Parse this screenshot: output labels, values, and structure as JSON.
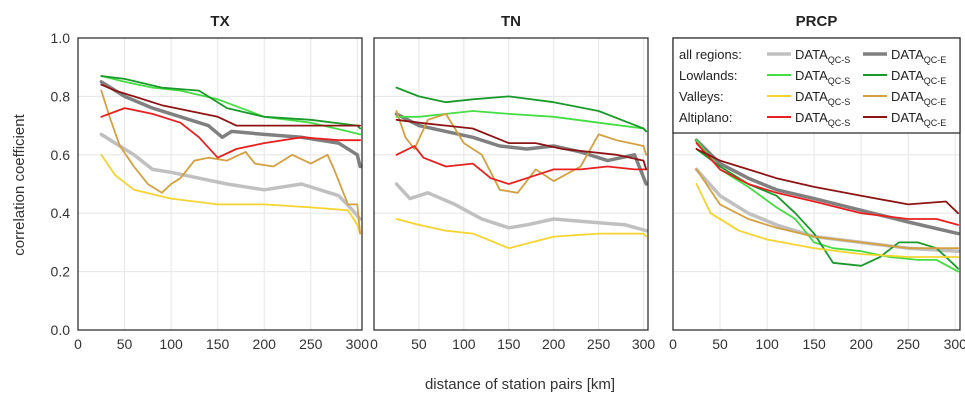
{
  "chart_data": {
    "type": "line",
    "ylabel": "correlation coefficient",
    "xlabel": "distance of station pairs [km]",
    "ylim": [
      0.0,
      1.0
    ],
    "xlim": [
      0,
      305
    ],
    "yticks": [
      "0.0",
      "0.2",
      "0.4",
      "0.6",
      "0.8",
      "1.0"
    ],
    "xticks": [
      "0",
      "50",
      "100",
      "150",
      "200",
      "250",
      "300"
    ],
    "grid": true,
    "legend": {
      "placement": "top-right of third panel",
      "rows": [
        {
          "label": "all regions:",
          "s_name": "DATA",
          "s_sub": "QC-S",
          "e_name": "DATA",
          "e_sub": "QC-E",
          "s_color": "#c0c0c0",
          "e_color": "#808080"
        },
        {
          "label": "Lowlands:",
          "s_name": "DATA",
          "s_sub": "QC-S",
          "e_name": "DATA",
          "e_sub": "QC-E",
          "s_color": "#44dd44",
          "e_color": "#1a9a2a"
        },
        {
          "label": "Valleys:",
          "s_name": "DATA",
          "s_sub": "QC-S",
          "e_name": "DATA",
          "e_sub": "QC-E",
          "s_color": "#f5d431",
          "e_color": "#d4a040"
        },
        {
          "label": "Altiplano:",
          "s_name": "DATA",
          "s_sub": "QC-S",
          "e_name": "DATA",
          "e_sub": "QC-E",
          "s_color": "#e82020",
          "e_color": "#8e1414"
        }
      ]
    },
    "panels": [
      {
        "title": "TX",
        "series": [
          {
            "group": "all regions",
            "variant": "QC-S",
            "color": "#c0c0c0",
            "width": 3.5,
            "x": [
              25,
              40,
              60,
              80,
              100,
              130,
              160,
              200,
              240,
              280,
              295,
              303
            ],
            "y": [
              0.67,
              0.64,
              0.6,
              0.55,
              0.54,
              0.52,
              0.5,
              0.48,
              0.5,
              0.46,
              0.41,
              0.38
            ]
          },
          {
            "group": "all regions",
            "variant": "QC-E",
            "color": "#808080",
            "width": 3.5,
            "x": [
              25,
              50,
              80,
              110,
              140,
              155,
              165,
              200,
              240,
              280,
              300,
              303
            ],
            "y": [
              0.85,
              0.8,
              0.76,
              0.73,
              0.7,
              0.66,
              0.68,
              0.67,
              0.66,
              0.64,
              0.6,
              0.56
            ]
          },
          {
            "group": "Lowlands",
            "variant": "QC-S",
            "color": "#44dd44",
            "width": 1.8,
            "x": [
              25,
              50,
              80,
              110,
              150,
              200,
              250,
              290,
              303
            ],
            "y": [
              0.87,
              0.85,
              0.83,
              0.82,
              0.79,
              0.73,
              0.71,
              0.68,
              0.67
            ]
          },
          {
            "group": "Lowlands",
            "variant": "QC-E",
            "color": "#1a9a2a",
            "width": 1.8,
            "x": [
              25,
              50,
              90,
              130,
              160,
              200,
              250,
              300,
              303
            ],
            "y": [
              0.87,
              0.86,
              0.83,
              0.82,
              0.76,
              0.73,
              0.72,
              0.7,
              0.69
            ]
          },
          {
            "group": "Valleys",
            "variant": "QC-S",
            "color": "#f5d431",
            "width": 1.8,
            "x": [
              25,
              40,
              60,
              100,
              150,
              200,
              250,
              290,
              300,
              303
            ],
            "y": [
              0.6,
              0.53,
              0.48,
              0.45,
              0.43,
              0.43,
              0.42,
              0.41,
              0.36,
              0.33
            ]
          },
          {
            "group": "Valleys",
            "variant": "QC-E",
            "color": "#d4a040",
            "width": 1.8,
            "x": [
              25,
              35,
              45,
              60,
              75,
              90,
              100,
              110,
              125,
              140,
              160,
              180,
              190,
              210,
              230,
              250,
              268,
              275,
              290,
              300,
              303
            ],
            "y": [
              0.82,
              0.72,
              0.63,
              0.56,
              0.5,
              0.47,
              0.5,
              0.52,
              0.58,
              0.59,
              0.58,
              0.61,
              0.57,
              0.56,
              0.6,
              0.57,
              0.6,
              0.55,
              0.43,
              0.43,
              0.33
            ]
          },
          {
            "group": "Altiplano",
            "variant": "QC-S",
            "color": "#e82020",
            "width": 1.8,
            "x": [
              25,
              50,
              80,
              110,
              130,
              150,
              170,
              200,
              240,
              280,
              303
            ],
            "y": [
              0.73,
              0.76,
              0.74,
              0.71,
              0.66,
              0.59,
              0.62,
              0.64,
              0.66,
              0.65,
              0.65
            ]
          },
          {
            "group": "Altiplano",
            "variant": "QC-E",
            "color": "#8e1414",
            "width": 1.8,
            "x": [
              25,
              40,
              60,
              90,
              120,
              150,
              170,
              200,
              240,
              280,
              300,
              303
            ],
            "y": [
              0.84,
              0.82,
              0.8,
              0.77,
              0.75,
              0.73,
              0.7,
              0.7,
              0.7,
              0.7,
              0.7,
              0.7
            ]
          }
        ]
      },
      {
        "title": "TN",
        "series": [
          {
            "group": "all regions",
            "variant": "QC-S",
            "color": "#c0c0c0",
            "width": 3.5,
            "x": [
              25,
              40,
              60,
              90,
              120,
              150,
              170,
              200,
              240,
              280,
              303
            ],
            "y": [
              0.5,
              0.45,
              0.47,
              0.43,
              0.38,
              0.35,
              0.36,
              0.38,
              0.37,
              0.36,
              0.34
            ]
          },
          {
            "group": "all regions",
            "variant": "QC-E",
            "color": "#808080",
            "width": 3.5,
            "x": [
              25,
              50,
              80,
              110,
              140,
              170,
              200,
              230,
              260,
              290,
              303
            ],
            "y": [
              0.74,
              0.7,
              0.68,
              0.66,
              0.63,
              0.62,
              0.63,
              0.61,
              0.58,
              0.6,
              0.5
            ]
          },
          {
            "group": "Lowlands",
            "variant": "QC-S",
            "color": "#44dd44",
            "width": 1.8,
            "x": [
              25,
              50,
              80,
              110,
              150,
              200,
              250,
              300,
              303
            ],
            "y": [
              0.73,
              0.73,
              0.74,
              0.75,
              0.74,
              0.73,
              0.71,
              0.69,
              0.68
            ]
          },
          {
            "group": "Lowlands",
            "variant": "QC-E",
            "color": "#1a9a2a",
            "width": 1.8,
            "x": [
              25,
              50,
              80,
              110,
              150,
              200,
              250,
              300,
              303
            ],
            "y": [
              0.83,
              0.8,
              0.78,
              0.79,
              0.8,
              0.78,
              0.75,
              0.69,
              0.68
            ]
          },
          {
            "group": "Valleys",
            "variant": "QC-S",
            "color": "#f5d431",
            "width": 1.8,
            "x": [
              25,
              50,
              80,
              110,
              150,
              200,
              250,
              300,
              303
            ],
            "y": [
              0.38,
              0.36,
              0.34,
              0.33,
              0.28,
              0.32,
              0.33,
              0.33,
              0.32
            ]
          },
          {
            "group": "Valleys",
            "variant": "QC-E",
            "color": "#d4a040",
            "width": 1.8,
            "x": [
              25,
              35,
              45,
              60,
              80,
              100,
              120,
              140,
              160,
              180,
              200,
              230,
              250,
              270,
              300,
              303
            ],
            "y": [
              0.75,
              0.66,
              0.62,
              0.72,
              0.74,
              0.64,
              0.6,
              0.48,
              0.47,
              0.55,
              0.51,
              0.56,
              0.67,
              0.65,
              0.63,
              0.6
            ]
          },
          {
            "group": "Altiplano",
            "variant": "QC-S",
            "color": "#e82020",
            "width": 1.8,
            "x": [
              25,
              45,
              55,
              80,
              110,
              130,
              150,
              170,
              190,
              200,
              230,
              260,
              290,
              303
            ],
            "y": [
              0.6,
              0.63,
              0.59,
              0.56,
              0.57,
              0.52,
              0.5,
              0.52,
              0.54,
              0.55,
              0.55,
              0.56,
              0.55,
              0.55
            ]
          },
          {
            "group": "Altiplano",
            "variant": "QC-E",
            "color": "#8e1414",
            "width": 1.8,
            "x": [
              25,
              50,
              80,
              110,
              150,
              180,
              210,
              240,
              270,
              300,
              303
            ],
            "y": [
              0.72,
              0.71,
              0.7,
              0.69,
              0.64,
              0.64,
              0.62,
              0.61,
              0.6,
              0.58,
              0.55
            ]
          }
        ]
      },
      {
        "title": "PRCP",
        "series": [
          {
            "group": "all regions",
            "variant": "QC-S",
            "color": "#c0c0c0",
            "width": 3.5,
            "x": [
              25,
              50,
              80,
              110,
              150,
              200,
              250,
              303
            ],
            "y": [
              0.55,
              0.46,
              0.4,
              0.36,
              0.32,
              0.3,
              0.28,
              0.27
            ]
          },
          {
            "group": "all regions",
            "variant": "QC-E",
            "color": "#808080",
            "width": 3.5,
            "x": [
              25,
              50,
              80,
              110,
              150,
              200,
              250,
              303
            ],
            "y": [
              0.65,
              0.57,
              0.52,
              0.48,
              0.45,
              0.41,
              0.37,
              0.33
            ]
          },
          {
            "group": "Lowlands",
            "variant": "QC-S",
            "color": "#44dd44",
            "width": 1.8,
            "x": [
              25,
              50,
              80,
              110,
              130,
              150,
              170,
              200,
              230,
              260,
              280,
              303
            ],
            "y": [
              0.65,
              0.55,
              0.49,
              0.42,
              0.38,
              0.3,
              0.28,
              0.27,
              0.25,
              0.24,
              0.24,
              0.2
            ]
          },
          {
            "group": "Lowlands",
            "variant": "QC-E",
            "color": "#1a9a2a",
            "width": 1.8,
            "x": [
              25,
              50,
              80,
              110,
              130,
              150,
              170,
              200,
              220,
              240,
              260,
              280,
              300,
              303
            ],
            "y": [
              0.62,
              0.56,
              0.5,
              0.46,
              0.4,
              0.33,
              0.23,
              0.22,
              0.25,
              0.3,
              0.3,
              0.28,
              0.22,
              0.21
            ]
          },
          {
            "group": "Valleys",
            "variant": "QC-S",
            "color": "#f5d431",
            "width": 1.8,
            "x": [
              25,
              40,
              70,
              100,
              150,
              200,
              250,
              303
            ],
            "y": [
              0.5,
              0.4,
              0.34,
              0.31,
              0.28,
              0.26,
              0.25,
              0.25
            ]
          },
          {
            "group": "Valleys",
            "variant": "QC-E",
            "color": "#d4a040",
            "width": 1.8,
            "x": [
              25,
              50,
              80,
              110,
              150,
              200,
              250,
              303
            ],
            "y": [
              0.55,
              0.43,
              0.38,
              0.35,
              0.32,
              0.3,
              0.28,
              0.28
            ]
          },
          {
            "group": "Altiplano",
            "variant": "QC-S",
            "color": "#e82020",
            "width": 1.8,
            "x": [
              25,
              50,
              80,
              110,
              150,
              200,
              250,
              280,
              303
            ],
            "y": [
              0.64,
              0.55,
              0.5,
              0.47,
              0.44,
              0.4,
              0.38,
              0.38,
              0.36
            ]
          },
          {
            "group": "Altiplano",
            "variant": "QC-E",
            "color": "#8e1414",
            "width": 1.8,
            "x": [
              25,
              50,
              80,
              110,
              150,
              200,
              250,
              290,
              303
            ],
            "y": [
              0.62,
              0.58,
              0.55,
              0.52,
              0.49,
              0.46,
              0.43,
              0.44,
              0.4
            ]
          }
        ]
      }
    ]
  }
}
